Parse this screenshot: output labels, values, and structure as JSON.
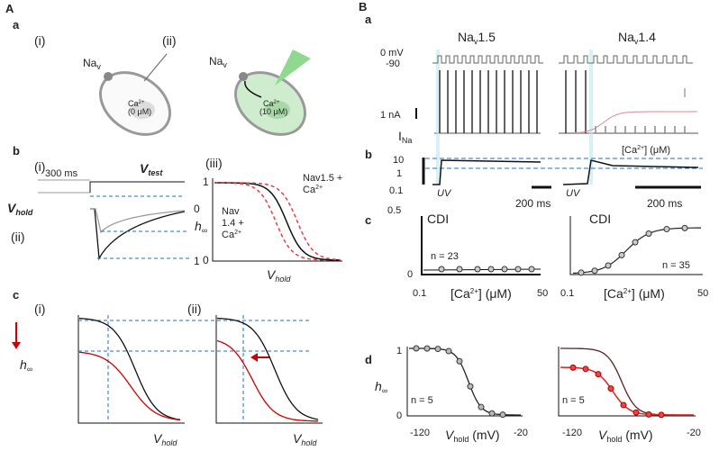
{
  "A": {
    "label": "A",
    "a": {
      "label": "a",
      "i": "(i)",
      "ii": "(ii)",
      "nav_i": {
        "base": "Na",
        "sub": "v"
      },
      "nav_ii": {
        "base": "Na",
        "sub": "v"
      },
      "cell_i": {
        "ion": "Ca",
        "charge": "2+",
        "conc": "(0 μM)"
      },
      "cell_ii": {
        "ion": "Ca",
        "charge": "2+",
        "conc": "(10 μM)"
      }
    },
    "b": {
      "label": "b",
      "i": "(i)",
      "ii": "(ii)",
      "iii": "(iii)",
      "scale": "300 ms",
      "v_test": {
        "base": "V",
        "sub": "test"
      },
      "v_hold": {
        "base": "V",
        "sub": "hold"
      },
      "ii_ticks": [
        "0",
        "1"
      ],
      "iii_ticks": [
        "1",
        "0"
      ],
      "h_inf": {
        "base": "h",
        "sub": "∞"
      },
      "nav14": {
        "line1": "Nav",
        "line2": "1.4 +",
        "ion": "Ca",
        "charge": "2+"
      },
      "nav15": {
        "line1": "Nav1.5 +",
        "ion": "Ca",
        "charge": "2+"
      },
      "x_label": {
        "base": "V",
        "sub": "hold"
      }
    },
    "c": {
      "label": "c",
      "i": "(i)",
      "ii": "(ii)",
      "h_inf": {
        "base": "h",
        "sub": "∞"
      },
      "x_labels": [
        {
          "base": "V",
          "sub": "hold"
        },
        {
          "base": "V",
          "sub": "hold"
        }
      ]
    }
  },
  "B": {
    "label": "B",
    "a": {
      "label": "a",
      "titles": [
        {
          "base": "Na",
          "sub": "v",
          "tail": "1.5"
        },
        {
          "base": "Na",
          "sub": "v",
          "tail": "1.4"
        }
      ],
      "mv0": "0 mV",
      "mv90": "-90",
      "scale": "1 nA",
      "i_na": {
        "base": "I",
        "sub": "Na"
      }
    },
    "b": {
      "label": "b",
      "legend": {
        "open": "[Ca",
        "charge": "2+",
        "close": "] (μM)"
      },
      "yticks": [
        "10",
        "1",
        "0.1"
      ],
      "uv": [
        "UV",
        "UV"
      ],
      "scales": [
        "200 ms",
        "200 ms"
      ]
    },
    "c": {
      "label": "c",
      "ytop": "0.5",
      "y0": "0",
      "panels": [
        {
          "title": "CDI",
          "n": "n = 23",
          "xmin": "0.1",
          "xmax": "50",
          "xlabel": {
            "open": "[Ca",
            "charge": "2+",
            "close": "] (μM)"
          }
        },
        {
          "title": "CDI",
          "n": "n = 35",
          "xmin": "0.1",
          "xmax": "50",
          "xlabel": {
            "open": "[Ca",
            "charge": "2+",
            "close": "] (μM)"
          }
        }
      ]
    },
    "d": {
      "label": "d",
      "ytop": "1",
      "y0": "0",
      "h_inf": {
        "base": "h",
        "sub": "∞"
      },
      "panels": [
        {
          "n": "n = 5",
          "xmin": "-120",
          "xmax": "-20",
          "xlabel": {
            "base": "V",
            "sub": "hold",
            "tail": " (mV)"
          }
        },
        {
          "n": "n = 5",
          "xmin": "-120",
          "xmax": "-20",
          "xlabel": {
            "base": "V",
            "sub": "hold",
            "tail": " (mV)"
          }
        }
      ]
    }
  }
}
